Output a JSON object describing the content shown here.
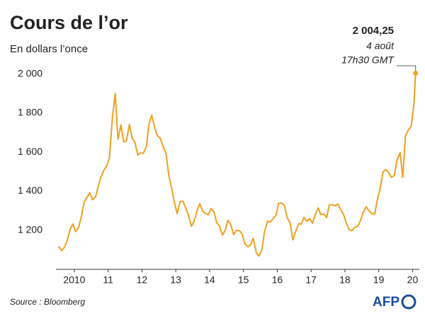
{
  "chart_data": {
    "type": "line",
    "title": "Cours de l’or",
    "subtitle": "En dollars l’once",
    "source": "Source : Bloomberg",
    "logo": "AFP",
    "annotation": {
      "value_label": "2 004,25",
      "date": "4 août",
      "time": "17h30 GMT"
    },
    "color": "#f0a01e",
    "xlim": [
      2010,
      2020.7
    ],
    "xticks": [
      {
        "value": 2010.5,
        "label": "2010"
      },
      {
        "value": 2011.5,
        "label": "11"
      },
      {
        "value": 2012.5,
        "label": "12"
      },
      {
        "value": 2013.5,
        "label": "13"
      },
      {
        "value": 2014.5,
        "label": "14"
      },
      {
        "value": 2015.5,
        "label": "15"
      },
      {
        "value": 2016.5,
        "label": "16"
      },
      {
        "value": 2017.5,
        "label": "17"
      },
      {
        "value": 2018.5,
        "label": "18"
      },
      {
        "value": 2019.5,
        "label": "19"
      },
      {
        "value": 2020.5,
        "label": "20"
      }
    ],
    "ylim": [
      1000,
      2100
    ],
    "yticks": [
      {
        "value": 1200,
        "label": "1 200"
      },
      {
        "value": 1400,
        "label": "1 400"
      },
      {
        "value": 1600,
        "label": "1 600"
      },
      {
        "value": 1800,
        "label": "1 800"
      },
      {
        "value": 2000,
        "label": "2 000"
      }
    ],
    "grid": false,
    "x": [
      2010.04,
      2010.13,
      2010.21,
      2010.29,
      2010.38,
      2010.46,
      2010.54,
      2010.63,
      2010.71,
      2010.79,
      2010.88,
      2010.96,
      2011.04,
      2011.13,
      2011.21,
      2011.29,
      2011.38,
      2011.46,
      2011.54,
      2011.63,
      2011.71,
      2011.79,
      2011.88,
      2011.96,
      2012.04,
      2012.13,
      2012.21,
      2012.29,
      2012.38,
      2012.46,
      2012.54,
      2012.63,
      2012.71,
      2012.79,
      2012.88,
      2012.96,
      2013.04,
      2013.13,
      2013.21,
      2013.29,
      2013.38,
      2013.46,
      2013.54,
      2013.63,
      2013.71,
      2013.79,
      2013.88,
      2013.96,
      2014.04,
      2014.13,
      2014.21,
      2014.29,
      2014.38,
      2014.46,
      2014.54,
      2014.63,
      2014.71,
      2014.79,
      2014.88,
      2014.96,
      2015.04,
      2015.13,
      2015.21,
      2015.29,
      2015.38,
      2015.46,
      2015.54,
      2015.63,
      2015.71,
      2015.79,
      2015.88,
      2015.96,
      2016.04,
      2016.13,
      2016.21,
      2016.29,
      2016.38,
      2016.46,
      2016.54,
      2016.63,
      2016.71,
      2016.79,
      2016.88,
      2016.96,
      2017.04,
      2017.13,
      2017.21,
      2017.29,
      2017.38,
      2017.46,
      2017.54,
      2017.63,
      2017.71,
      2017.79,
      2017.88,
      2017.96,
      2018.04,
      2018.13,
      2018.21,
      2018.29,
      2018.38,
      2018.46,
      2018.54,
      2018.63,
      2018.71,
      2018.79,
      2018.88,
      2018.96,
      2019.04,
      2019.13,
      2019.21,
      2019.29,
      2019.38,
      2019.46,
      2019.54,
      2019.63,
      2019.71,
      2019.79,
      2019.88,
      2019.96,
      2020.04,
      2020.13,
      2020.21,
      2020.29,
      2020.38,
      2020.46,
      2020.54,
      2020.59
    ],
    "values": [
      1118,
      1095,
      1113,
      1148,
      1205,
      1232,
      1193,
      1215,
      1271,
      1342,
      1370,
      1391,
      1356,
      1372,
      1424,
      1473,
      1510,
      1529,
      1572,
      1780,
      1900,
      1666,
      1739,
      1652,
      1656,
      1742,
      1673,
      1650,
      1585,
      1596,
      1594,
      1626,
      1744,
      1790,
      1722,
      1684,
      1671,
      1627,
      1593,
      1487,
      1414,
      1343,
      1286,
      1347,
      1349,
      1316,
      1275,
      1221,
      1244,
      1300,
      1336,
      1299,
      1287,
      1279,
      1311,
      1296,
      1239,
      1222,
      1176,
      1200,
      1251,
      1227,
      1178,
      1198,
      1199,
      1181,
      1131,
      1117,
      1125,
      1159,
      1086,
      1068,
      1097,
      1199,
      1246,
      1242,
      1260,
      1276,
      1337,
      1340,
      1326,
      1266,
      1238,
      1151,
      1192,
      1234,
      1231,
      1266,
      1246,
      1260,
      1236,
      1283,
      1314,
      1280,
      1283,
      1265,
      1331,
      1331,
      1325,
      1335,
      1304,
      1281,
      1238,
      1202,
      1198,
      1215,
      1221,
      1250,
      1291,
      1320,
      1300,
      1285,
      1283,
      1359,
      1413,
      1500,
      1510,
      1495,
      1471,
      1480,
      1560,
      1597,
      1470,
      1683,
      1715,
      1732,
      1847,
      2004.25
    ]
  }
}
